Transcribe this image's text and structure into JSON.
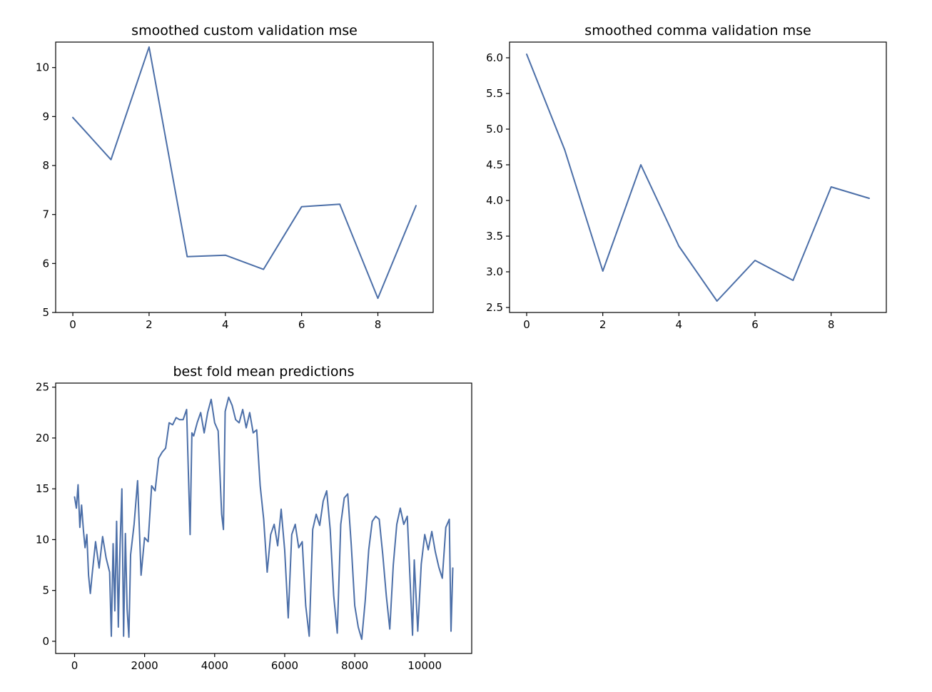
{
  "chart_data": [
    {
      "type": "line",
      "title": "smoothed custom validation mse",
      "xlabel": "",
      "ylabel": "",
      "xlim": [
        -0.45,
        9.45
      ],
      "ylim": [
        5,
        10.52
      ],
      "xticks": [
        0,
        2,
        4,
        6,
        8
      ],
      "xtick_labels": [
        "0",
        "2",
        "4",
        "6",
        "8"
      ],
      "yticks": [
        5,
        6,
        7,
        8,
        9,
        10
      ],
      "ytick_labels": [
        "5",
        "6",
        "7",
        "8",
        "9",
        "10"
      ],
      "grid": false,
      "color": "#4c6fa8",
      "x": [
        0,
        1,
        2,
        3,
        4,
        5,
        6,
        7,
        8,
        9
      ],
      "values": [
        8.98,
        8.12,
        10.42,
        6.14,
        6.17,
        5.88,
        7.16,
        7.21,
        5.29,
        7.18
      ]
    },
    {
      "type": "line",
      "title": "smoothed comma validation mse",
      "xlabel": "",
      "ylabel": "",
      "xlim": [
        -0.45,
        9.45
      ],
      "ylim": [
        2.43,
        6.22
      ],
      "xticks": [
        0,
        2,
        4,
        6,
        8
      ],
      "xtick_labels": [
        "0",
        "2",
        "4",
        "6",
        "8"
      ],
      "yticks": [
        2.5,
        3.0,
        3.5,
        4.0,
        4.5,
        5.0,
        5.5,
        6.0
      ],
      "ytick_labels": [
        "2.5",
        "3.0",
        "3.5",
        "4.0",
        "4.5",
        "5.0",
        "5.5",
        "6.0"
      ],
      "grid": false,
      "color": "#4c6fa8",
      "x": [
        0,
        1,
        2,
        3,
        4,
        5,
        6,
        7,
        8,
        9
      ],
      "values": [
        6.05,
        4.71,
        3.01,
        4.5,
        3.36,
        2.59,
        3.16,
        2.88,
        4.19,
        4.03
      ]
    },
    {
      "type": "line",
      "title": "best fold mean predictions",
      "xlabel": "",
      "ylabel": "",
      "xlim": [
        -540,
        11340
      ],
      "ylim": [
        -1.2,
        25.4
      ],
      "xticks": [
        0,
        2000,
        4000,
        6000,
        8000,
        10000
      ],
      "xtick_labels": [
        "0",
        "2000",
        "4000",
        "6000",
        "8000",
        "10000"
      ],
      "yticks": [
        0,
        5,
        10,
        15,
        20,
        25
      ],
      "ytick_labels": [
        "0",
        "5",
        "10",
        "15",
        "20",
        "25"
      ],
      "grid": false,
      "color": "#4c6fa8",
      "x": [
        0,
        50,
        100,
        150,
        200,
        250,
        300,
        350,
        400,
        450,
        500,
        600,
        700,
        800,
        900,
        1000,
        1050,
        1100,
        1150,
        1200,
        1250,
        1300,
        1350,
        1400,
        1450,
        1500,
        1550,
        1600,
        1700,
        1800,
        1900,
        2000,
        2100,
        2200,
        2300,
        2400,
        2500,
        2600,
        2700,
        2800,
        2900,
        3000,
        3100,
        3200,
        3300,
        3350,
        3400,
        3500,
        3600,
        3700,
        3800,
        3900,
        4000,
        4100,
        4200,
        4250,
        4300,
        4400,
        4500,
        4600,
        4700,
        4800,
        4900,
        5000,
        5100,
        5200,
        5300,
        5400,
        5500,
        5600,
        5700,
        5800,
        5900,
        6000,
        6100,
        6200,
        6300,
        6400,
        6500,
        6600,
        6700,
        6800,
        6900,
        7000,
        7100,
        7200,
        7300,
        7400,
        7500,
        7600,
        7700,
        7800,
        7900,
        8000,
        8100,
        8200,
        8300,
        8400,
        8500,
        8600,
        8700,
        8800,
        8900,
        9000,
        9100,
        9200,
        9300,
        9400,
        9500,
        9600,
        9650,
        9700,
        9800,
        9900,
        10000,
        10100,
        10200,
        10300,
        10400,
        10500,
        10600,
        10700,
        10750,
        10800
      ],
      "values": [
        14.2,
        13.1,
        15.4,
        11.2,
        13.4,
        11.0,
        9.2,
        10.5,
        6.5,
        4.7,
        6.5,
        9.8,
        7.2,
        10.3,
        8.2,
        6.8,
        0.5,
        9.6,
        3.0,
        11.8,
        1.4,
        9.5,
        15.0,
        0.5,
        10.6,
        3.2,
        0.4,
        8.5,
        11.5,
        15.8,
        6.5,
        10.2,
        9.8,
        15.3,
        14.8,
        18.0,
        18.6,
        19.0,
        21.5,
        21.3,
        22.0,
        21.8,
        21.8,
        22.8,
        10.5,
        20.5,
        20.2,
        21.5,
        22.5,
        20.5,
        22.5,
        23.8,
        21.5,
        20.7,
        12.5,
        11.0,
        22.6,
        24.0,
        23.2,
        21.8,
        21.5,
        22.8,
        21.0,
        22.5,
        20.5,
        20.8,
        15.3,
        12.0,
        6.8,
        10.5,
        11.5,
        9.4,
        13.0,
        9.0,
        2.3,
        10.5,
        11.5,
        9.2,
        9.8,
        3.5,
        0.5,
        11.0,
        12.5,
        11.4,
        13.8,
        14.8,
        11.0,
        4.5,
        0.8,
        11.5,
        14.1,
        14.5,
        9.5,
        3.5,
        1.4,
        0.2,
        4.0,
        9.0,
        11.8,
        12.3,
        12.0,
        8.5,
        4.5,
        1.2,
        7.5,
        11.5,
        13.1,
        11.5,
        12.3,
        4.5,
        0.6,
        8.0,
        1.0,
        7.6,
        10.5,
        9.0,
        10.8,
        8.8,
        7.3,
        6.2,
        11.2,
        12.0,
        1.0,
        7.2
      ]
    }
  ]
}
